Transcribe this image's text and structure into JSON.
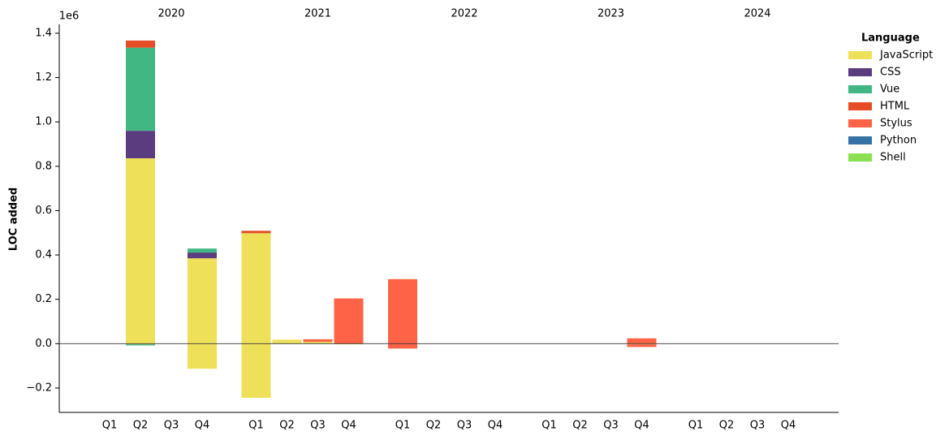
{
  "chart_data": {
    "type": "bar",
    "stacked": true,
    "ylabel": "LOC added",
    "y_offset_label": "1e6",
    "legend_title": "Language",
    "legend_position": "right",
    "years": [
      "2020",
      "2021",
      "2022",
      "2023",
      "2024"
    ],
    "categories": [
      "Q1",
      "Q2",
      "Q3",
      "Q4",
      "Q1",
      "Q2",
      "Q3",
      "Q4",
      "Q1",
      "Q2",
      "Q3",
      "Q4",
      "Q1",
      "Q2",
      "Q3",
      "Q4",
      "Q1",
      "Q2",
      "Q3",
      "Q4"
    ],
    "ylim": [
      -0.31,
      1.44
    ],
    "yticks": [
      {
        "value": -0.2,
        "label": "−0.2"
      },
      {
        "value": 0,
        "label": "0.0"
      },
      0.2,
      0.4,
      0.6,
      0.8,
      {
        "value": 1,
        "label": "1.0"
      },
      1.2,
      1.4
    ],
    "series": [
      {
        "name": "JavaScript",
        "color": "#efe05a",
        "values": [
          0,
          0.836,
          0,
          0.385,
          0.498,
          0.018,
          0.008,
          0,
          0,
          0,
          0,
          0,
          0,
          0,
          0,
          0,
          0,
          0,
          0,
          0
        ],
        "removed": [
          0,
          -0.003,
          0,
          -0.113,
          -0.244,
          0,
          0,
          -0.003,
          0,
          0,
          0,
          0,
          0,
          0,
          0,
          -0.003,
          0,
          0,
          0,
          0
        ]
      },
      {
        "name": "CSS",
        "color": "#5b3d7f",
        "values": [
          0,
          0.124,
          0,
          0.026,
          0,
          0,
          0,
          0,
          0,
          0,
          0,
          0,
          0,
          0,
          0,
          0,
          0,
          0,
          0,
          0
        ],
        "removed": [
          0,
          0,
          0,
          0,
          0,
          0,
          0,
          0,
          0,
          0,
          0,
          0,
          0,
          0,
          0,
          0,
          0,
          0,
          0,
          0
        ]
      },
      {
        "name": "Vue",
        "color": "#41b883",
        "values": [
          0,
          0.375,
          0,
          0.018,
          0,
          0,
          0,
          0,
          0,
          0,
          0,
          0,
          0,
          0,
          0,
          0,
          0,
          0,
          0,
          0
        ],
        "removed": [
          0,
          -0.005,
          0,
          0,
          0,
          0,
          0,
          0,
          0,
          0,
          0,
          0,
          0,
          0,
          0,
          0,
          0,
          0,
          0,
          0
        ]
      },
      {
        "name": "HTML",
        "color": "#e44d26",
        "values": [
          0,
          0.032,
          0,
          0,
          0.011,
          0,
          0,
          0,
          0,
          0,
          0,
          0,
          0,
          0,
          0,
          0,
          0,
          0,
          0,
          0
        ],
        "removed": [
          0,
          0,
          0,
          0,
          0,
          0,
          0,
          0,
          0,
          0,
          0,
          0,
          0,
          0,
          0,
          0,
          0,
          0,
          0,
          0
        ]
      },
      {
        "name": "Stylus",
        "color": "#ff6347",
        "values": [
          0,
          0,
          0,
          0,
          0,
          0,
          0.012,
          0.204,
          0.291,
          0,
          0,
          0,
          0,
          0,
          0,
          0.024,
          0,
          0,
          0,
          0
        ],
        "removed": [
          0,
          0,
          0,
          0,
          0,
          0,
          0,
          0,
          -0.022,
          0,
          0,
          0,
          0,
          0,
          0,
          -0.012,
          0,
          0,
          0,
          0
        ]
      },
      {
        "name": "Python",
        "color": "#3572a5",
        "values": [
          0,
          0,
          0,
          0,
          0,
          0,
          0,
          0,
          0,
          0,
          0,
          0,
          0,
          0,
          0,
          0,
          0,
          0,
          0,
          0
        ],
        "removed": [
          0,
          0,
          0,
          0,
          0,
          0,
          0,
          0,
          0,
          0,
          0,
          0,
          0,
          0,
          0,
          0,
          0,
          0,
          0,
          0
        ]
      },
      {
        "name": "Shell",
        "color": "#89e051",
        "values": [
          0,
          0,
          0,
          0,
          0,
          0,
          0,
          0,
          0,
          0,
          0,
          0,
          0,
          0,
          0,
          0,
          0,
          0,
          0,
          0
        ],
        "removed": [
          0,
          0,
          0,
          0,
          0,
          0,
          0,
          0,
          0,
          0,
          0,
          0,
          0,
          0,
          0,
          0,
          0,
          0,
          0,
          0
        ]
      }
    ]
  }
}
